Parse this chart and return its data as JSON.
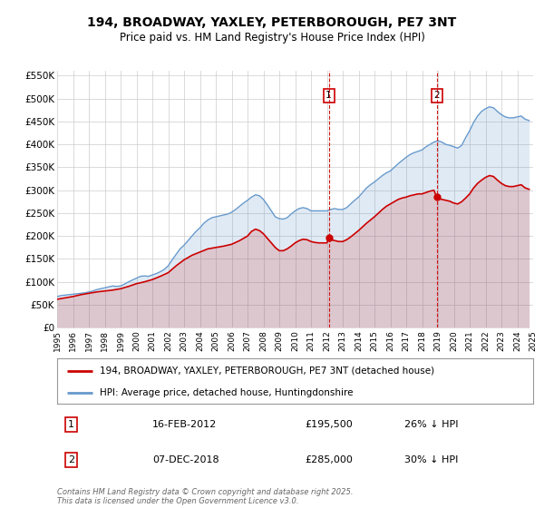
{
  "title": "194, BROADWAY, YAXLEY, PETERBOROUGH, PE7 3NT",
  "subtitle": "Price paid vs. HM Land Registry's House Price Index (HPI)",
  "background_color": "#ffffff",
  "plot_bg_color": "#ffffff",
  "grid_color": "#cccccc",
  "ylim": [
    0,
    560000
  ],
  "yticks": [
    0,
    50000,
    100000,
    150000,
    200000,
    250000,
    300000,
    350000,
    400000,
    450000,
    500000,
    550000
  ],
  "ytick_labels": [
    "£0",
    "£50K",
    "£100K",
    "£150K",
    "£200K",
    "£250K",
    "£300K",
    "£350K",
    "£400K",
    "£450K",
    "£500K",
    "£550K"
  ],
  "hpi_color": "#6699cc",
  "price_color": "#cc0000",
  "marker_color": "#cc0000",
  "vline_color": "#cc0000",
  "annotation_box_color": "#cc0000",
  "sale1_date_num": 2012.12,
  "sale1_price": 195500,
  "sale1_label": "1",
  "sale1_date_str": "16-FEB-2012",
  "sale1_price_str": "£195,500",
  "sale1_hpi_str": "26% ↓ HPI",
  "sale2_date_num": 2018.92,
  "sale2_price": 285000,
  "sale2_label": "2",
  "sale2_date_str": "07-DEC-2018",
  "sale2_price_str": "£285,000",
  "sale2_hpi_str": "30% ↓ HPI",
  "legend_label_price": "194, BROADWAY, YAXLEY, PETERBOROUGH, PE7 3NT (detached house)",
  "legend_label_hpi": "HPI: Average price, detached house, Huntingdonshire",
  "footer_text": "Contains HM Land Registry data © Crown copyright and database right 2025.\nThis data is licensed under the Open Government Licence v3.0.",
  "hpi_data": [
    [
      1995.0,
      68000
    ],
    [
      1995.25,
      70000
    ],
    [
      1995.5,
      71000
    ],
    [
      1995.75,
      72000
    ],
    [
      1996.0,
      73000
    ],
    [
      1996.25,
      74000
    ],
    [
      1996.5,
      75000
    ],
    [
      1996.75,
      76000
    ],
    [
      1997.0,
      78000
    ],
    [
      1997.25,
      80000
    ],
    [
      1997.5,
      83000
    ],
    [
      1997.75,
      85000
    ],
    [
      1998.0,
      87000
    ],
    [
      1998.25,
      89000
    ],
    [
      1998.5,
      91000
    ],
    [
      1998.75,
      90000
    ],
    [
      1999.0,
      91000
    ],
    [
      1999.25,
      95000
    ],
    [
      1999.5,
      100000
    ],
    [
      1999.75,
      104000
    ],
    [
      2000.0,
      108000
    ],
    [
      2000.25,
      112000
    ],
    [
      2000.5,
      113000
    ],
    [
      2000.75,
      112000
    ],
    [
      2001.0,
      115000
    ],
    [
      2001.25,
      118000
    ],
    [
      2001.5,
      122000
    ],
    [
      2001.75,
      127000
    ],
    [
      2002.0,
      135000
    ],
    [
      2002.25,
      148000
    ],
    [
      2002.5,
      160000
    ],
    [
      2002.75,
      172000
    ],
    [
      2003.0,
      180000
    ],
    [
      2003.25,
      190000
    ],
    [
      2003.5,
      200000
    ],
    [
      2003.75,
      210000
    ],
    [
      2004.0,
      218000
    ],
    [
      2004.25,
      228000
    ],
    [
      2004.5,
      235000
    ],
    [
      2004.75,
      240000
    ],
    [
      2005.0,
      242000
    ],
    [
      2005.25,
      244000
    ],
    [
      2005.5,
      246000
    ],
    [
      2005.75,
      248000
    ],
    [
      2006.0,
      252000
    ],
    [
      2006.25,
      258000
    ],
    [
      2006.5,
      265000
    ],
    [
      2006.75,
      272000
    ],
    [
      2007.0,
      278000
    ],
    [
      2007.25,
      285000
    ],
    [
      2007.5,
      290000
    ],
    [
      2007.75,
      288000
    ],
    [
      2008.0,
      280000
    ],
    [
      2008.25,
      268000
    ],
    [
      2008.5,
      255000
    ],
    [
      2008.75,
      242000
    ],
    [
      2009.0,
      238000
    ],
    [
      2009.25,
      237000
    ],
    [
      2009.5,
      240000
    ],
    [
      2009.75,
      248000
    ],
    [
      2010.0,
      255000
    ],
    [
      2010.25,
      260000
    ],
    [
      2010.5,
      262000
    ],
    [
      2010.75,
      260000
    ],
    [
      2011.0,
      255000
    ],
    [
      2011.25,
      255000
    ],
    [
      2011.5,
      255000
    ],
    [
      2011.75,
      255000
    ],
    [
      2012.0,
      255000
    ],
    [
      2012.25,
      258000
    ],
    [
      2012.5,
      260000
    ],
    [
      2012.75,
      258000
    ],
    [
      2013.0,
      258000
    ],
    [
      2013.25,
      262000
    ],
    [
      2013.5,
      270000
    ],
    [
      2013.75,
      278000
    ],
    [
      2014.0,
      285000
    ],
    [
      2014.25,
      295000
    ],
    [
      2014.5,
      305000
    ],
    [
      2014.75,
      312000
    ],
    [
      2015.0,
      318000
    ],
    [
      2015.25,
      325000
    ],
    [
      2015.5,
      332000
    ],
    [
      2015.75,
      338000
    ],
    [
      2016.0,
      342000
    ],
    [
      2016.25,
      350000
    ],
    [
      2016.5,
      358000
    ],
    [
      2016.75,
      365000
    ],
    [
      2017.0,
      372000
    ],
    [
      2017.25,
      378000
    ],
    [
      2017.5,
      382000
    ],
    [
      2017.75,
      385000
    ],
    [
      2018.0,
      388000
    ],
    [
      2018.25,
      395000
    ],
    [
      2018.5,
      400000
    ],
    [
      2018.75,
      405000
    ],
    [
      2019.0,
      408000
    ],
    [
      2019.25,
      405000
    ],
    [
      2019.5,
      400000
    ],
    [
      2019.75,
      398000
    ],
    [
      2020.0,
      395000
    ],
    [
      2020.25,
      392000
    ],
    [
      2020.5,
      398000
    ],
    [
      2020.75,
      415000
    ],
    [
      2021.0,
      430000
    ],
    [
      2021.25,
      448000
    ],
    [
      2021.5,
      462000
    ],
    [
      2021.75,
      472000
    ],
    [
      2022.0,
      478000
    ],
    [
      2022.25,
      482000
    ],
    [
      2022.5,
      480000
    ],
    [
      2022.75,
      472000
    ],
    [
      2023.0,
      465000
    ],
    [
      2023.25,
      460000
    ],
    [
      2023.5,
      458000
    ],
    [
      2023.75,
      458000
    ],
    [
      2024.0,
      460000
    ],
    [
      2024.25,
      462000
    ],
    [
      2024.5,
      455000
    ],
    [
      2024.75,
      452000
    ]
  ],
  "price_data": [
    [
      1995.0,
      62000
    ],
    [
      1995.5,
      65000
    ],
    [
      1996.0,
      68000
    ],
    [
      1996.5,
      72000
    ],
    [
      1997.0,
      75000
    ],
    [
      1997.5,
      78000
    ],
    [
      1998.0,
      80000
    ],
    [
      1998.5,
      82000
    ],
    [
      1999.0,
      85000
    ],
    [
      1999.5,
      90000
    ],
    [
      2000.0,
      96000
    ],
    [
      2000.5,
      100000
    ],
    [
      2001.0,
      105000
    ],
    [
      2001.5,
      112000
    ],
    [
      2002.0,
      120000
    ],
    [
      2002.5,
      135000
    ],
    [
      2003.0,
      148000
    ],
    [
      2003.5,
      158000
    ],
    [
      2004.0,
      165000
    ],
    [
      2004.5,
      172000
    ],
    [
      2005.0,
      175000
    ],
    [
      2005.5,
      178000
    ],
    [
      2006.0,
      182000
    ],
    [
      2006.5,
      190000
    ],
    [
      2007.0,
      200000
    ],
    [
      2007.25,
      210000
    ],
    [
      2007.5,
      215000
    ],
    [
      2007.75,
      212000
    ],
    [
      2008.0,
      205000
    ],
    [
      2008.25,
      195000
    ],
    [
      2008.5,
      185000
    ],
    [
      2008.75,
      175000
    ],
    [
      2009.0,
      168000
    ],
    [
      2009.25,
      168000
    ],
    [
      2009.5,
      172000
    ],
    [
      2009.75,
      178000
    ],
    [
      2010.0,
      185000
    ],
    [
      2010.25,
      190000
    ],
    [
      2010.5,
      193000
    ],
    [
      2010.75,
      192000
    ],
    [
      2011.0,
      188000
    ],
    [
      2011.25,
      186000
    ],
    [
      2011.5,
      185000
    ],
    [
      2011.75,
      185000
    ],
    [
      2012.0,
      185000
    ],
    [
      2012.12,
      195500
    ],
    [
      2012.25,
      192000
    ],
    [
      2012.5,
      190000
    ],
    [
      2012.75,
      188000
    ],
    [
      2013.0,
      188000
    ],
    [
      2013.25,
      192000
    ],
    [
      2013.5,
      198000
    ],
    [
      2013.75,
      205000
    ],
    [
      2014.0,
      212000
    ],
    [
      2014.25,
      220000
    ],
    [
      2014.5,
      228000
    ],
    [
      2014.75,
      235000
    ],
    [
      2015.0,
      242000
    ],
    [
      2015.25,
      250000
    ],
    [
      2015.5,
      258000
    ],
    [
      2015.75,
      265000
    ],
    [
      2016.0,
      270000
    ],
    [
      2016.25,
      275000
    ],
    [
      2016.5,
      280000
    ],
    [
      2016.75,
      283000
    ],
    [
      2017.0,
      285000
    ],
    [
      2017.25,
      288000
    ],
    [
      2017.5,
      290000
    ],
    [
      2017.75,
      292000
    ],
    [
      2018.0,
      292000
    ],
    [
      2018.25,
      295000
    ],
    [
      2018.5,
      298000
    ],
    [
      2018.75,
      300000
    ],
    [
      2018.92,
      285000
    ],
    [
      2019.0,
      282000
    ],
    [
      2019.25,
      280000
    ],
    [
      2019.5,
      278000
    ],
    [
      2019.75,
      276000
    ],
    [
      2020.0,
      272000
    ],
    [
      2020.25,
      270000
    ],
    [
      2020.5,
      275000
    ],
    [
      2020.75,
      283000
    ],
    [
      2021.0,
      292000
    ],
    [
      2021.25,
      305000
    ],
    [
      2021.5,
      315000
    ],
    [
      2021.75,
      322000
    ],
    [
      2022.0,
      328000
    ],
    [
      2022.25,
      332000
    ],
    [
      2022.5,
      330000
    ],
    [
      2022.75,
      322000
    ],
    [
      2023.0,
      315000
    ],
    [
      2023.25,
      310000
    ],
    [
      2023.5,
      308000
    ],
    [
      2023.75,
      308000
    ],
    [
      2024.0,
      310000
    ],
    [
      2024.25,
      312000
    ],
    [
      2024.5,
      305000
    ],
    [
      2024.75,
      302000
    ]
  ]
}
